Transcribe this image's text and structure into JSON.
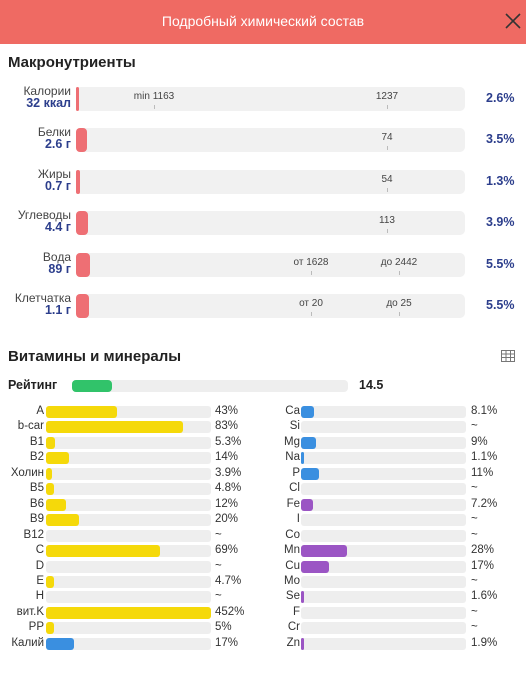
{
  "header": {
    "title": "Подробный химический состав"
  },
  "macros": {
    "title": "Макронутриенты",
    "rows": [
      {
        "name": "Калории",
        "value": "32 ккал",
        "fill": 0.005,
        "pct": "2.6%",
        "markers": [
          "min 1163",
          "1237"
        ],
        "marker_pos": [
          0.2,
          0.8
        ]
      },
      {
        "name": "Белки",
        "value": "2.6 г",
        "fill": 0.028,
        "pct": "3.5%",
        "markers": [
          "74"
        ],
        "marker_pos": [
          0.8
        ]
      },
      {
        "name": "Жиры",
        "value": "0.7 г",
        "fill": 0.01,
        "pct": "1.3%",
        "markers": [
          "54"
        ],
        "marker_pos": [
          0.8
        ]
      },
      {
        "name": "Углеводы",
        "value": "4.4 г",
        "fill": 0.031,
        "pct": "3.9%",
        "markers": [
          "113"
        ],
        "marker_pos": [
          0.8
        ]
      },
      {
        "name": "Вода",
        "value": "89 г",
        "fill": 0.037,
        "pct": "5.5%",
        "markers": [
          "от 1628",
          "до 2442"
        ],
        "marker_pos": [
          0.605,
          0.83
        ]
      },
      {
        "name": "Клетчатка",
        "value": "1.1 г",
        "fill": 0.034,
        "pct": "5.5%",
        "markers": [
          "от 20",
          "до 25"
        ],
        "marker_pos": [
          0.605,
          0.83
        ]
      }
    ]
  },
  "vitamins": {
    "title": "Витамины и минералы",
    "table_icon": "table-icon",
    "rating": {
      "label": "Рейтинг",
      "value": "14.5",
      "fraction": 0.145,
      "color": "#31c36a"
    },
    "left": [
      {
        "name": "A",
        "pct": "43%",
        "fraction": 0.43,
        "color": "#f5d90a"
      },
      {
        "name": "b-car",
        "pct": "83%",
        "fraction": 0.83,
        "color": "#f5d90a"
      },
      {
        "name": "B1",
        "pct": "5.3%",
        "fraction": 0.053,
        "color": "#f5d90a"
      },
      {
        "name": "B2",
        "pct": "14%",
        "fraction": 0.14,
        "color": "#f5d90a"
      },
      {
        "name": "Холин",
        "pct": "3.9%",
        "fraction": 0.039,
        "color": "#f5d90a"
      },
      {
        "name": "B5",
        "pct": "4.8%",
        "fraction": 0.048,
        "color": "#f5d90a"
      },
      {
        "name": "B6",
        "pct": "12%",
        "fraction": 0.12,
        "color": "#f5d90a"
      },
      {
        "name": "B9",
        "pct": "20%",
        "fraction": 0.2,
        "color": "#f5d90a"
      },
      {
        "name": "B12",
        "pct": "~",
        "fraction": 0,
        "color": "#f5d90a"
      },
      {
        "name": "C",
        "pct": "69%",
        "fraction": 0.69,
        "color": "#f5d90a"
      },
      {
        "name": "D",
        "pct": "~",
        "fraction": 0,
        "color": "#f5d90a"
      },
      {
        "name": "E",
        "pct": "4.7%",
        "fraction": 0.047,
        "color": "#f5d90a"
      },
      {
        "name": "H",
        "pct": "~",
        "fraction": 0,
        "color": "#f5d90a"
      },
      {
        "name": "вит.K",
        "pct": "452%",
        "fraction": 1.0,
        "color": "#f5d90a"
      },
      {
        "name": "PP",
        "pct": "5%",
        "fraction": 0.05,
        "color": "#f5d90a"
      },
      {
        "name": "Калий",
        "pct": "17%",
        "fraction": 0.17,
        "color": "#3a8fe0"
      }
    ],
    "right": [
      {
        "name": "Ca",
        "pct": "8.1%",
        "fraction": 0.081,
        "color": "#3a8fe0"
      },
      {
        "name": "Si",
        "pct": "~",
        "fraction": 0,
        "color": "#3a8fe0"
      },
      {
        "name": "Mg",
        "pct": "9%",
        "fraction": 0.09,
        "color": "#3a8fe0"
      },
      {
        "name": "Na",
        "pct": "1.1%",
        "fraction": 0.011,
        "color": "#3a8fe0"
      },
      {
        "name": "P",
        "pct": "11%",
        "fraction": 0.11,
        "color": "#3a8fe0"
      },
      {
        "name": "Cl",
        "pct": "~",
        "fraction": 0,
        "color": "#3a8fe0"
      },
      {
        "name": "Fe",
        "pct": "7.2%",
        "fraction": 0.072,
        "color": "#9b55c4"
      },
      {
        "name": "I",
        "pct": "~",
        "fraction": 0,
        "color": "#9b55c4"
      },
      {
        "name": "Co",
        "pct": "~",
        "fraction": 0,
        "color": "#9b55c4"
      },
      {
        "name": "Mn",
        "pct": "28%",
        "fraction": 0.28,
        "color": "#9b55c4"
      },
      {
        "name": "Cu",
        "pct": "17%",
        "fraction": 0.17,
        "color": "#9b55c4"
      },
      {
        "name": "Mo",
        "pct": "~",
        "fraction": 0,
        "color": "#9b55c4"
      },
      {
        "name": "Se",
        "pct": "1.6%",
        "fraction": 0.016,
        "color": "#9b55c4"
      },
      {
        "name": "F",
        "pct": "~",
        "fraction": 0,
        "color": "#9b55c4"
      },
      {
        "name": "Cr",
        "pct": "~",
        "fraction": 0,
        "color": "#9b55c4"
      },
      {
        "name": "Zn",
        "pct": "1.9%",
        "fraction": 0.019,
        "color": "#9b55c4"
      }
    ]
  }
}
